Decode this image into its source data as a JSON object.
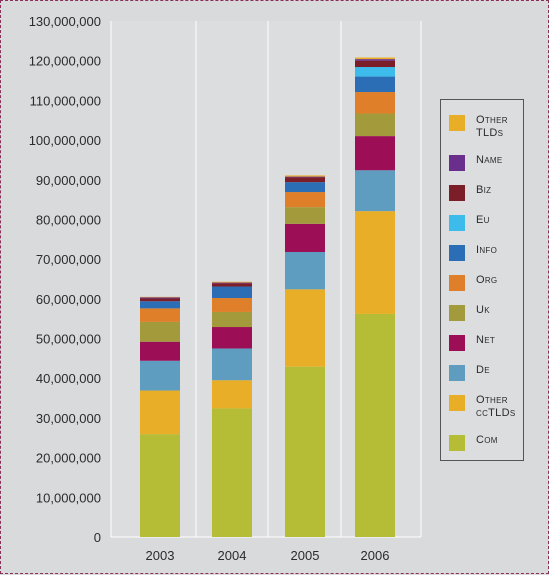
{
  "chart_data": {
    "type": "bar",
    "stacked": true,
    "categories": [
      "2003",
      "2004",
      "2005",
      "2006"
    ],
    "ylim": [
      0,
      130000000
    ],
    "yticks": [
      0,
      10000000,
      20000000,
      30000000,
      40000000,
      50000000,
      60000000,
      70000000,
      80000000,
      90000000,
      100000000,
      110000000,
      120000000,
      130000000
    ],
    "ytick_labels": [
      "0",
      "10,000,000",
      "20,000,000",
      "30,000,000",
      "40,000,000",
      "50,000,000",
      "60,000,000",
      "70,000,000",
      "80,000,000",
      "90,000,000",
      "100,000,000",
      "110,000,000",
      "120,000,000",
      "130,000,000"
    ],
    "grid": "vertical-lines",
    "legend_position": "right",
    "series": [
      {
        "name": "Com",
        "color": "#b5bd36",
        "values": [
          25900000,
          32400000,
          42900000,
          56200000
        ]
      },
      {
        "name": "Other\nccTLDs",
        "color": "#e9ae27",
        "values": [
          11000000,
          7100000,
          19500000,
          25900000
        ]
      },
      {
        "name": "De",
        "color": "#5e9cc0",
        "values": [
          7500000,
          8000000,
          9400000,
          10300000
        ]
      },
      {
        "name": "Net",
        "color": "#9c0f57",
        "values": [
          4800000,
          5400000,
          7100000,
          8600000
        ]
      },
      {
        "name": "Uk",
        "color": "#a39a3c",
        "values": [
          5000000,
          3800000,
          4200000,
          5700000
        ]
      },
      {
        "name": "Org",
        "color": "#e07f2a",
        "values": [
          3400000,
          3500000,
          3800000,
          5400000
        ]
      },
      {
        "name": "Info",
        "color": "#2c6eb5",
        "values": [
          1800000,
          2900000,
          2500000,
          3900000
        ]
      },
      {
        "name": "Eu",
        "color": "#3dbbea",
        "values": [
          0,
          0,
          0,
          2400000
        ]
      },
      {
        "name": "Biz",
        "color": "#7b1e28",
        "values": [
          700000,
          800000,
          1200000,
          1600000
        ]
      },
      {
        "name": "Name",
        "color": "#6a2e8c",
        "values": [
          300000,
          200000,
          200000,
          400000
        ]
      },
      {
        "name": "Other\nTLDs",
        "color": "#e9ae27",
        "values": [
          100000,
          200000,
          300000,
          400000
        ]
      }
    ]
  },
  "legend": {
    "items": [
      {
        "label": "Other\nTLDs",
        "color": "#e9ae27"
      },
      {
        "label": "Name",
        "color": "#6a2e8c"
      },
      {
        "label": "Biz",
        "color": "#7b1e28"
      },
      {
        "label": "Eu",
        "color": "#3dbbea"
      },
      {
        "label": "Info",
        "color": "#2c6eb5"
      },
      {
        "label": "Org",
        "color": "#e07f2a"
      },
      {
        "label": "Uk",
        "color": "#a39a3c"
      },
      {
        "label": "Net",
        "color": "#9c0f57"
      },
      {
        "label": "De",
        "color": "#5e9cc0"
      },
      {
        "label": "Other\nccTLDs",
        "color": "#e9ae27"
      },
      {
        "label": "Com",
        "color": "#b5bd36"
      }
    ]
  }
}
